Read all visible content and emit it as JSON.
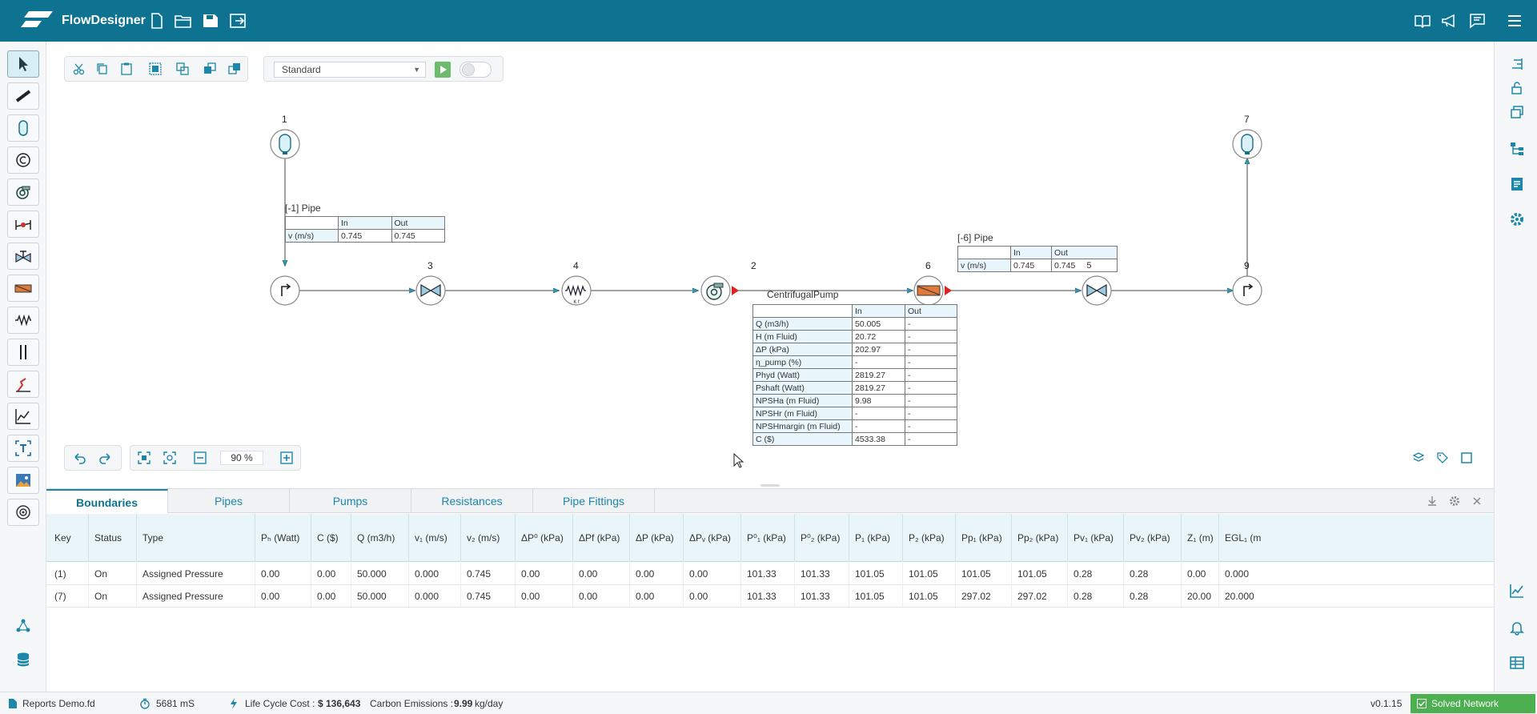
{
  "app": {
    "title": "FlowDesigner",
    "version": "v0.1.15"
  },
  "header_icons_left": [
    "new-file-icon",
    "open-folder-icon",
    "save-icon",
    "export-icon"
  ],
  "header_icons_right": [
    "book-icon",
    "megaphone-icon",
    "chat-icon",
    "hamburger-menu-icon"
  ],
  "left_tools": [
    "pointer-tool-icon",
    "pipe-tool-icon",
    "tank-tool-icon",
    "copyright-tool-icon",
    "pump-tool-icon",
    "meter-tool-icon",
    "valve-tool-icon",
    "heater-tool-icon",
    "resistance-tool-icon",
    "fitting-tool-icon",
    "loss-tool-icon",
    "chart-tool-icon",
    "text-tool-icon",
    "image-tool-icon",
    "target-tool-icon"
  ],
  "left_bottom_icons": [
    "network-icon",
    "database-icon"
  ],
  "right_icons": [
    "align-icon",
    "lock-icon",
    "layers-icon",
    "tree-icon",
    "document-icon",
    "gear-icon"
  ],
  "right_bottom_icons": [
    "plot-icon",
    "bell-icon",
    "table-icon"
  ],
  "toolbar": {
    "mode_select": "Standard"
  },
  "zoom": {
    "value": "90 %"
  },
  "nodes": [
    {
      "id": "1",
      "label": "1"
    },
    {
      "id": "7",
      "label": "7"
    },
    {
      "id": "3",
      "label": "3"
    },
    {
      "id": "4",
      "label": "4"
    },
    {
      "id": "2",
      "label": "2"
    },
    {
      "id": "6",
      "label": "6"
    },
    {
      "id": "9",
      "label": "9"
    },
    {
      "id": "5",
      "label": "5"
    }
  ],
  "pipe1": {
    "title": "[-1] Pipe",
    "col_in": "In",
    "col_out": "Out",
    "row_label": "v (m/s)",
    "in": "0.745",
    "out": "0.745"
  },
  "pipe6": {
    "title": "[-6] Pipe",
    "col_in": "In",
    "col_out": "Out",
    "row_label": "v (m/s)",
    "in": "0.745",
    "out": "0.745"
  },
  "pump": {
    "title": "CentrifugalPump",
    "col_in": "In",
    "col_out": "Out",
    "rows": [
      {
        "label": "Q (m3/h)",
        "in": "50.005",
        "out": "-"
      },
      {
        "label": "H (m Fluid)",
        "in": "20.72",
        "out": "-"
      },
      {
        "label": "ΔP (kPa)",
        "in": "202.97",
        "out": "-"
      },
      {
        "label": "η_pump (%)",
        "in": "-",
        "out": "-"
      },
      {
        "label": "Phyd (Watt)",
        "in": "2819.27",
        "out": "-"
      },
      {
        "label": "Pshaft (Watt)",
        "in": "2819.27",
        "out": "-"
      },
      {
        "label": "NPSHa (m Fluid)",
        "in": "9.98",
        "out": "-"
      },
      {
        "label": "NPSHr (m Fluid)",
        "in": "-",
        "out": "-"
      },
      {
        "label": "NPSHmargin (m Fluid)",
        "in": "-",
        "out": "-"
      },
      {
        "label": "C ($)",
        "in": "4533.38",
        "out": "-"
      }
    ]
  },
  "tabs": [
    "Boundaries",
    "Pipes",
    "Pumps",
    "Resistances",
    "Pipe Fittings"
  ],
  "table": {
    "columns": [
      "Key",
      "Status",
      "Type",
      "Pₕ (Watt)",
      "C ($)",
      "Q (m3/h)",
      "v₁ (m/s)",
      "v₂ (m/s)",
      "ΔP⁰ (kPa)",
      "ΔPf (kPa)",
      "ΔP (kPa)",
      "ΔPᵥ (kPa)",
      "P⁰₁ (kPa)",
      "P⁰₂ (kPa)",
      "P₁ (kPa)",
      "P₂ (kPa)",
      "Pp₁ (kPa)",
      "Pp₂ (kPa)",
      "Pv₁ (kPa)",
      "Pv₂ (kPa)",
      "Z₁ (m)",
      "EGL₁ (m"
    ],
    "rows": [
      [
        "(1)",
        "On",
        "Assigned Pressure",
        "0.00",
        "0.00",
        "50.000",
        "0.000",
        "0.745",
        "0.00",
        "0.00",
        "0.00",
        "0.00",
        "101.33",
        "101.33",
        "101.05",
        "101.05",
        "101.05",
        "101.05",
        "0.28",
        "0.28",
        "0.00",
        "0.000"
      ],
      [
        "(7)",
        "On",
        "Assigned Pressure",
        "0.00",
        "0.00",
        "50.000",
        "0.000",
        "0.745",
        "0.00",
        "0.00",
        "0.00",
        "0.00",
        "101.33",
        "101.33",
        "101.05",
        "101.05",
        "297.02",
        "297.02",
        "0.28",
        "0.28",
        "20.00",
        "20.000"
      ]
    ]
  },
  "status": {
    "file": "Reports Demo.fd",
    "time": "5681 mS",
    "lcc_label": "Life Cycle Cost :",
    "lcc_value": "$ 136,643",
    "co2_label": "Carbon Emissions :",
    "co2_value": "9.99",
    "co2_unit": "kg/day",
    "solved": "Solved Network"
  },
  "colors": {
    "header": "#0e7391",
    "accent": "#1c87aa",
    "solved": "#4caf50"
  }
}
